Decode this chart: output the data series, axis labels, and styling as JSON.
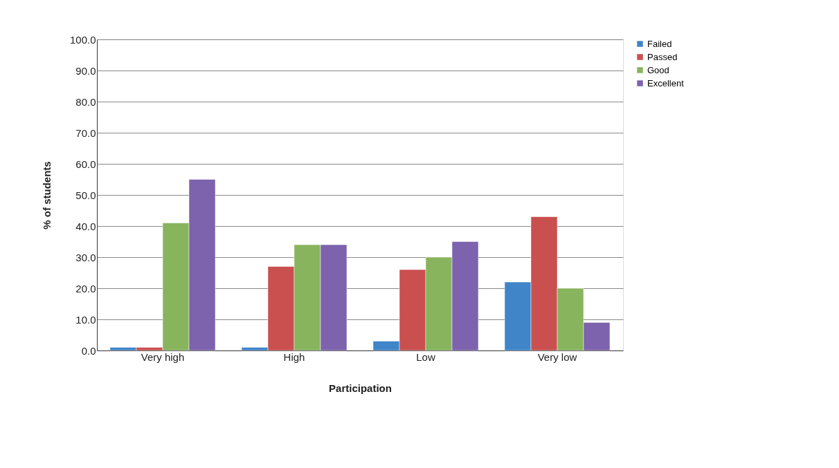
{
  "chart_data": {
    "type": "bar",
    "xlabel": "Participation",
    "ylabel": "% of students",
    "categories": [
      "Very high",
      "High",
      "Low",
      "Very low"
    ],
    "series": [
      {
        "name": "Failed",
        "color": "#3f85c8",
        "values": [
          1,
          1,
          3,
          22
        ]
      },
      {
        "name": "Passed",
        "color": "#c9504f",
        "values": [
          1,
          27,
          26,
          43
        ]
      },
      {
        "name": "Good",
        "color": "#88b45e",
        "values": [
          41,
          34,
          30,
          20
        ]
      },
      {
        "name": "Excellent",
        "color": "#7d63ad",
        "values": [
          55,
          34,
          35,
          9
        ]
      }
    ],
    "ylim": [
      0,
      100
    ],
    "yticks": [
      {
        "value": 0,
        "label": "0.0"
      },
      {
        "value": 10,
        "label": "10.0"
      },
      {
        "value": 20,
        "label": "20.0"
      },
      {
        "value": 30,
        "label": "30.0"
      },
      {
        "value": 40,
        "label": "40.0"
      },
      {
        "value": 50,
        "label": "50.0"
      },
      {
        "value": 60,
        "label": "60.0"
      },
      {
        "value": 70,
        "label": "70.0"
      },
      {
        "value": 80,
        "label": "80.0"
      },
      {
        "value": 90,
        "label": "90.0"
      },
      {
        "value": 100,
        "label": "100.0"
      }
    ],
    "grid": "y",
    "legend": "right"
  }
}
